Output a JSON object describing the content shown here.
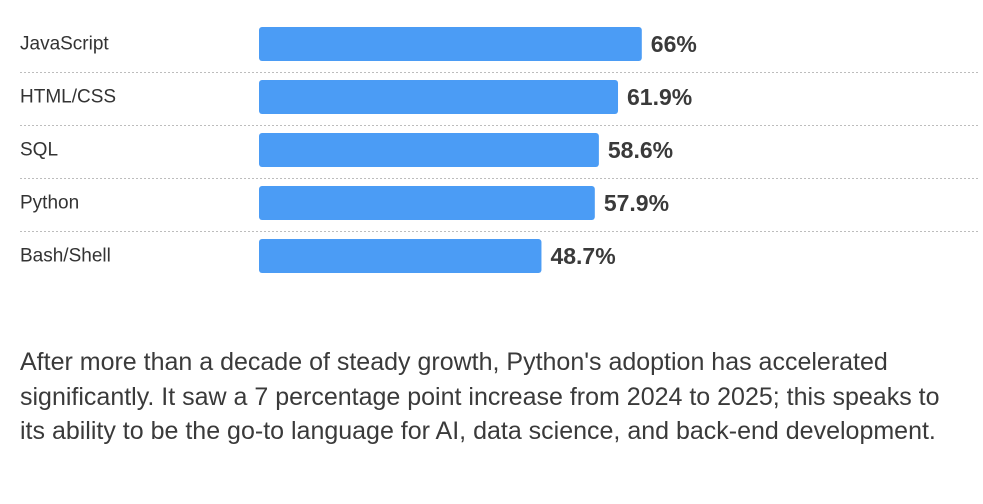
{
  "chart_data": {
    "type": "bar",
    "orientation": "horizontal",
    "categories": [
      "JavaScript",
      "HTML/CSS",
      "SQL",
      "Python",
      "Bash/Shell"
    ],
    "values": [
      66,
      61.9,
      58.6,
      57.9,
      48.7
    ],
    "value_labels": [
      "66%",
      "61.9%",
      "58.6%",
      "57.9%",
      "48.7%"
    ],
    "xlim": [
      0,
      100
    ],
    "unit": "%",
    "bar_color": "#4b9cf5",
    "grid": false
  },
  "caption": "After more than a decade of steady growth, Python's adoption has accelerated significantly. It saw a 7 percentage point increase from 2024 to 2025; this speaks to its ability to be the go-to language for AI, data science, and back-end development."
}
